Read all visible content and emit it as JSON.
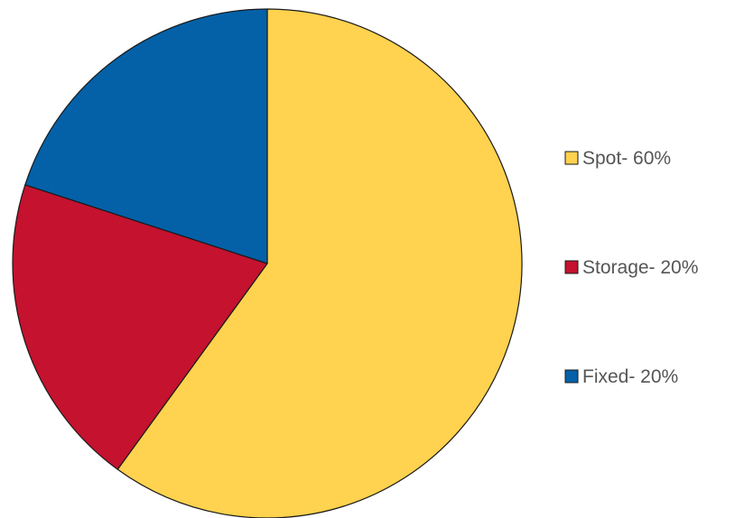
{
  "chart_data": {
    "type": "pie",
    "title": "",
    "start_angle_deg": 0,
    "direction": "clockwise",
    "legend_position": "right",
    "slices": [
      {
        "label": "Spot- 60%",
        "value": 60,
        "color": "#FFD24F"
      },
      {
        "label": "Storage- 20%",
        "value": 20,
        "color": "#C4122F"
      },
      {
        "label": "Fixed- 20%",
        "value": 20,
        "color": "#0461A8"
      }
    ]
  }
}
